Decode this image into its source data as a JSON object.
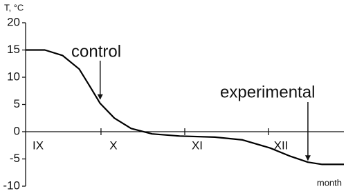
{
  "chart_data": {
    "type": "line",
    "y_label": "T, °C",
    "x_label": "month",
    "categories": [
      "IX",
      "X",
      "XI",
      "XII"
    ],
    "x": [
      0.1,
      0.33,
      0.54,
      0.74,
      0.86,
      0.99,
      1.16,
      1.36,
      1.61,
      1.94,
      2.36,
      2.69,
      3.02,
      3.26,
      3.47,
      3.64,
      3.9
    ],
    "series": [
      {
        "values": [
          15,
          15,
          14,
          11.5,
          8.5,
          5.2,
          2.5,
          0.6,
          -0.4,
          -0.8,
          -1,
          -1.5,
          -3,
          -4.5,
          -5.6,
          -6,
          -6
        ],
        "color": "#000000"
      }
    ],
    "xlim": [
      0.1,
      3.9
    ],
    "ylim": [
      -10,
      20
    ],
    "yticks": [
      -10,
      -5,
      0,
      5,
      10,
      15,
      20
    ],
    "annotations": [
      {
        "text": "control",
        "x": 0.99,
        "y": 5.2
      },
      {
        "text": "experimental",
        "x": 3.47,
        "y": -6
      }
    ]
  }
}
